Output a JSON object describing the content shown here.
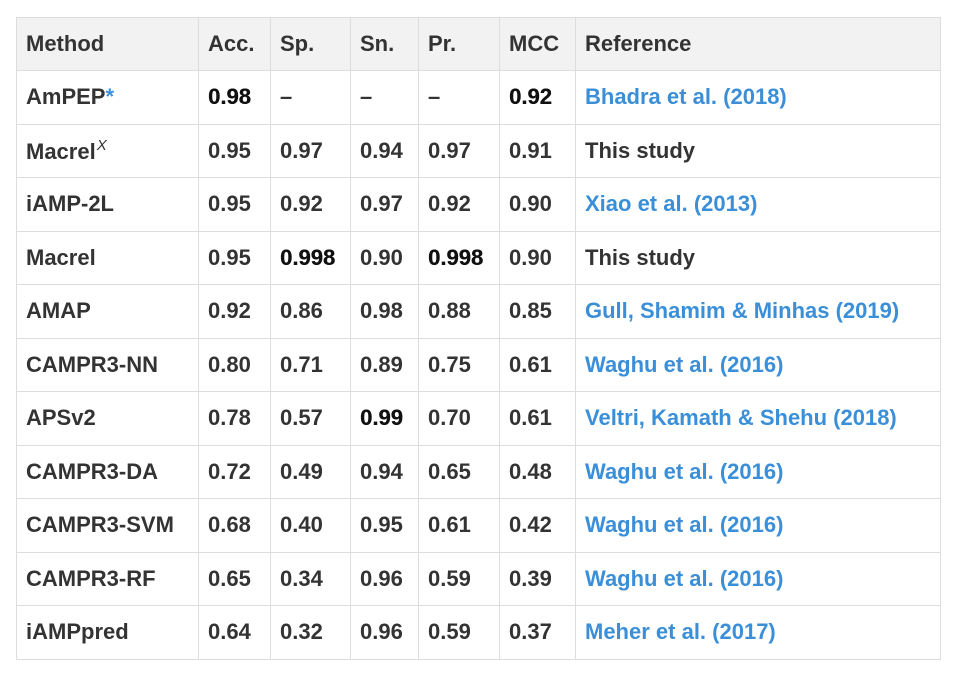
{
  "table": {
    "headers": [
      "Method",
      "Acc.",
      "Sp.",
      "Sn.",
      "Pr.",
      "MCC",
      "Reference"
    ],
    "rows": [
      {
        "method": "AmPEP",
        "marker": "*",
        "sup": "",
        "acc": "0.98",
        "sp": "–",
        "sn": "–",
        "pr": "–",
        "mcc": "0.92",
        "reference": "Bhadra et al. (2018)",
        "ref_is_link": true,
        "bold": [
          "acc",
          "mcc"
        ]
      },
      {
        "method": "Macrel",
        "marker": "",
        "sup": "X",
        "acc": "0.95",
        "sp": "0.97",
        "sn": "0.94",
        "pr": "0.97",
        "mcc": "0.91",
        "reference": "This study",
        "ref_is_link": false,
        "bold": []
      },
      {
        "method": "iAMP-2L",
        "marker": "",
        "sup": "",
        "acc": "0.95",
        "sp": "0.92",
        "sn": "0.97",
        "pr": "0.92",
        "mcc": "0.90",
        "reference": "Xiao et al. (2013)",
        "ref_is_link": true,
        "bold": []
      },
      {
        "method": "Macrel",
        "marker": "",
        "sup": "",
        "acc": "0.95",
        "sp": "0.998",
        "sn": "0.90",
        "pr": "0.998",
        "mcc": "0.90",
        "reference": "This study",
        "ref_is_link": false,
        "bold": [
          "sp",
          "pr"
        ]
      },
      {
        "method": "AMAP",
        "marker": "",
        "sup": "",
        "acc": "0.92",
        "sp": "0.86",
        "sn": "0.98",
        "pr": "0.88",
        "mcc": "0.85",
        "reference": "Gull, Shamim & Minhas (2019)",
        "ref_is_link": true,
        "bold": []
      },
      {
        "method": "CAMPR3-NN",
        "marker": "",
        "sup": "",
        "acc": "0.80",
        "sp": "0.71",
        "sn": "0.89",
        "pr": "0.75",
        "mcc": "0.61",
        "reference": "Waghu et al. (2016)",
        "ref_is_link": true,
        "bold": []
      },
      {
        "method": "APSv2",
        "marker": "",
        "sup": "",
        "acc": "0.78",
        "sp": "0.57",
        "sn": "0.99",
        "pr": "0.70",
        "mcc": "0.61",
        "reference": "Veltri, Kamath & Shehu (2018)",
        "ref_is_link": true,
        "bold": [
          "sn"
        ]
      },
      {
        "method": "CAMPR3-DA",
        "marker": "",
        "sup": "",
        "acc": "0.72",
        "sp": "0.49",
        "sn": "0.94",
        "pr": "0.65",
        "mcc": "0.48",
        "reference": "Waghu et al. (2016)",
        "ref_is_link": true,
        "bold": []
      },
      {
        "method": "CAMPR3-SVM",
        "marker": "",
        "sup": "",
        "acc": "0.68",
        "sp": "0.40",
        "sn": "0.95",
        "pr": "0.61",
        "mcc": "0.42",
        "reference": "Waghu et al. (2016)",
        "ref_is_link": true,
        "bold": []
      },
      {
        "method": "CAMPR3-RF",
        "marker": "",
        "sup": "",
        "acc": "0.65",
        "sp": "0.34",
        "sn": "0.96",
        "pr": "0.59",
        "mcc": "0.39",
        "reference": "Waghu et al. (2016)",
        "ref_is_link": true,
        "bold": []
      },
      {
        "method": "iAMPpred",
        "marker": "",
        "sup": "",
        "acc": "0.64",
        "sp": "0.32",
        "sn": "0.96",
        "pr": "0.59",
        "mcc": "0.37",
        "reference": "Meher et al. (2017)",
        "ref_is_link": true,
        "bold": []
      }
    ]
  },
  "colors": {
    "link": "#3a8fd8",
    "text": "#333333",
    "header_bg": "#f2f2f2",
    "border": "#dddddd"
  }
}
